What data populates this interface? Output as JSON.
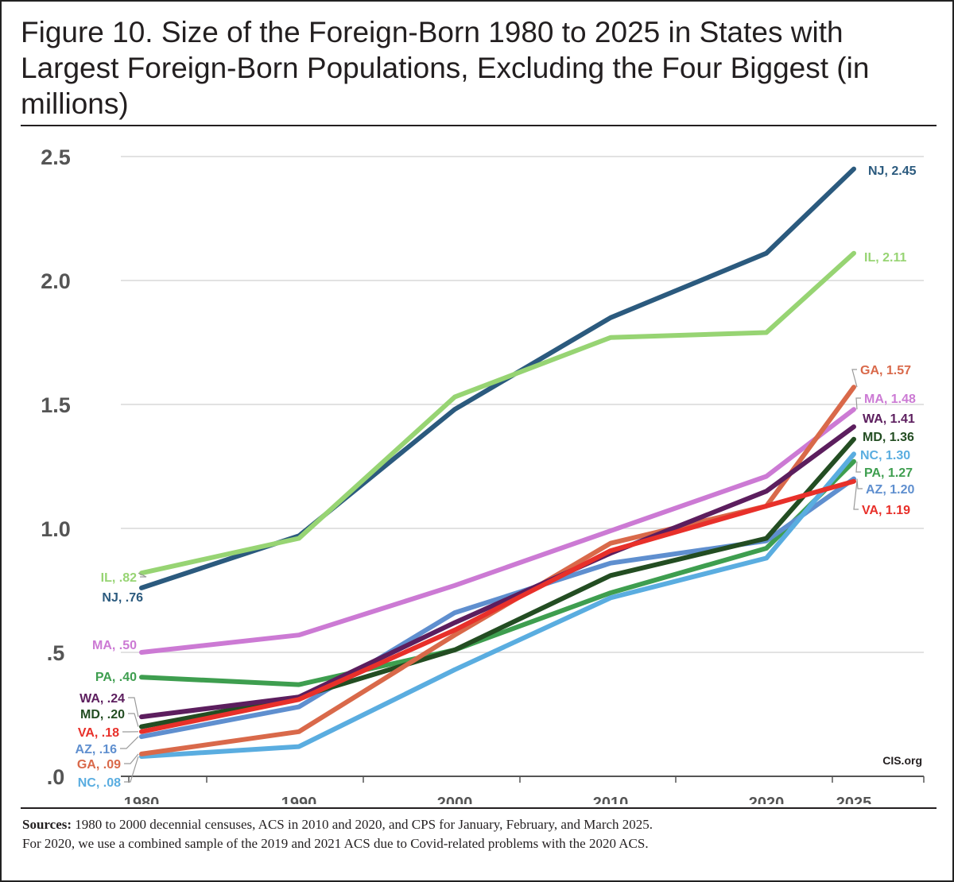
{
  "title": "Figure 10. Size of the Foreign-Born 1980 to 2025 in States with Largest Foreign-Born Populations, Excluding the Four Biggest (in millions)",
  "credit": "CIS.org",
  "sources": {
    "label": "Sources:",
    "line1": "1980 to 2000 decennial censuses, ACS in 2010 and 2020, and CPS for January, February, and March 2025.",
    "line2": "For 2020, we use a combined sample of the 2019 and 2021 ACS due to Covid-related problems with the 2020 ACS."
  },
  "chart_data": {
    "type": "line",
    "x": [
      "1980",
      "1990",
      "2000",
      "2010",
      "2020",
      "2025"
    ],
    "y_ticks": [
      ".0",
      ".5",
      "1.0",
      "1.5",
      "2.0",
      "2.5"
    ],
    "ylim": [
      0,
      2.5
    ],
    "grid": true,
    "series": [
      {
        "name": "NJ",
        "color": "#2b5a7e",
        "values": [
          0.76,
          0.97,
          1.48,
          1.85,
          2.11,
          2.45
        ],
        "start_label": "NJ, .76",
        "end_label": "NJ, 2.45"
      },
      {
        "name": "IL",
        "color": "#97d473",
        "values": [
          0.82,
          0.96,
          1.53,
          1.77,
          1.79,
          2.11
        ],
        "start_label": "IL, .82",
        "end_label": "IL, 2.11"
      },
      {
        "name": "MA",
        "color": "#cc7ad4",
        "values": [
          0.5,
          0.57,
          0.77,
          0.99,
          1.21,
          1.48
        ],
        "start_label": "MA, .50",
        "end_label": "MA, 1.48"
      },
      {
        "name": "PA",
        "color": "#3e9e4f",
        "values": [
          0.4,
          0.37,
          0.51,
          0.74,
          0.92,
          1.27
        ],
        "start_label": "PA, .40",
        "end_label": "PA, 1.27"
      },
      {
        "name": "AZ",
        "color": "#5f8fcf",
        "values": [
          0.16,
          0.28,
          0.66,
          0.86,
          0.95,
          1.2
        ],
        "start_label": "AZ, .16",
        "end_label": "AZ, 1.20"
      },
      {
        "name": "NC",
        "color": "#5aade0",
        "values": [
          0.08,
          0.12,
          0.43,
          0.72,
          0.88,
          1.3
        ],
        "start_label": "NC, .08",
        "end_label": "NC, 1.30"
      },
      {
        "name": "MD",
        "color": "#234d22",
        "values": [
          0.2,
          0.32,
          0.51,
          0.81,
          0.96,
          1.36
        ],
        "start_label": "MD, .20",
        "end_label": "MD, 1.36"
      },
      {
        "name": "GA",
        "color": "#d9694a",
        "values": [
          0.09,
          0.18,
          0.57,
          0.94,
          1.09,
          1.57
        ],
        "start_label": "GA, .09",
        "end_label": "GA, 1.57"
      },
      {
        "name": "WA",
        "color": "#5c1e5e",
        "values": [
          0.24,
          0.32,
          0.62,
          0.9,
          1.15,
          1.41
        ],
        "start_label": "WA, .24",
        "end_label": "WA, 1.41"
      },
      {
        "name": "VA",
        "color": "#e8302a",
        "values": [
          0.18,
          0.31,
          0.59,
          0.91,
          1.09,
          1.19
        ],
        "start_label": "VA, .18",
        "end_label": "VA, 1.19"
      }
    ]
  }
}
